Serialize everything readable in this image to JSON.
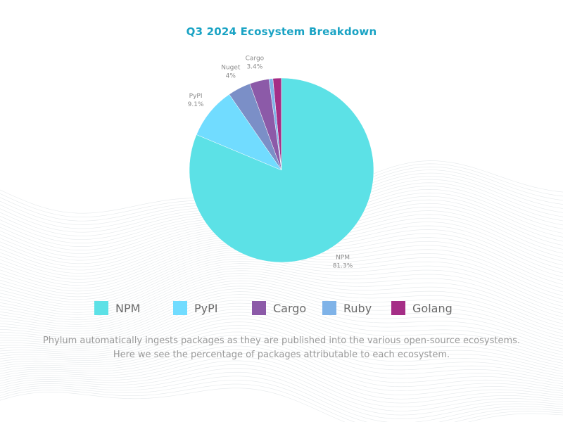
{
  "chart_data": {
    "type": "pie",
    "title": "Q3 2024 Ecosystem Breakdown",
    "slices": [
      {
        "name": "NPM",
        "value": 81.3,
        "label": "81.3%",
        "color": "#5ce1e6"
      },
      {
        "name": "PyPI",
        "value": 9.1,
        "label": "9.1%",
        "color": "#71dcff"
      },
      {
        "name": "Nuget",
        "value": 4,
        "label": "4%",
        "color": "#7b8fc7"
      },
      {
        "name": "Cargo",
        "value": 3.4,
        "label": "3.4%",
        "color": "#8c5aa8"
      },
      {
        "name": "Ruby",
        "value": 0.7,
        "label": "",
        "color": "#7fb3e8"
      },
      {
        "name": "Golang",
        "value": 1.5,
        "label": "",
        "color": "#a52e86"
      }
    ],
    "legend": [
      {
        "name": "NPM",
        "color": "#5ce1e6"
      },
      {
        "name": "PyPI",
        "color": "#71dcff"
      },
      {
        "name": "Cargo",
        "color": "#8c5aa8"
      },
      {
        "name": "Ruby",
        "color": "#7fb3e8"
      },
      {
        "name": "Golang",
        "color": "#a52e86"
      }
    ],
    "legend_position": "bottom"
  },
  "caption": "Phylum automatically ingests packages as they are published into the various open-source ecosystems. Here we see the percentage of packages attributable to each ecosystem."
}
